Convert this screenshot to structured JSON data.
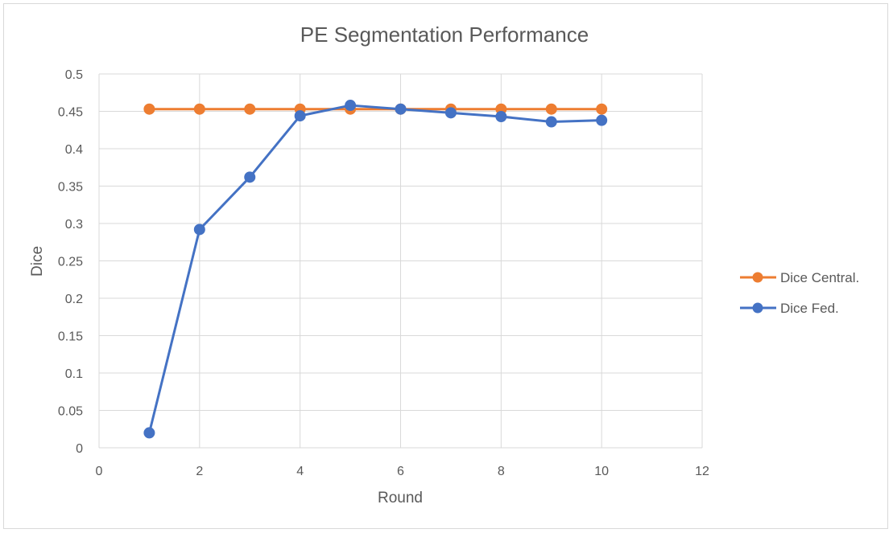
{
  "chart_data": {
    "type": "scatter",
    "title": "PE Segmentation Performance",
    "xlabel": "Round",
    "ylabel": "Dice",
    "xlim": [
      0,
      12
    ],
    "ylim": [
      0,
      0.5
    ],
    "x_ticks": [
      "0",
      "2",
      "4",
      "6",
      "8",
      "10",
      "12"
    ],
    "y_ticks": [
      "0",
      "0.05",
      "0.1",
      "0.15",
      "0.2",
      "0.25",
      "0.3",
      "0.35",
      "0.4",
      "0.45",
      "0.5"
    ],
    "grid": true,
    "legend_position": "right",
    "series": [
      {
        "name": "Dice Central.",
        "color": "#ed7d31",
        "x": [
          1,
          2,
          3,
          4,
          5,
          6,
          7,
          8,
          9,
          10
        ],
        "y": [
          0.453,
          0.453,
          0.453,
          0.453,
          0.453,
          0.453,
          0.453,
          0.453,
          0.453,
          0.453
        ]
      },
      {
        "name": "Dice Fed.",
        "color": "#4472c4",
        "x": [
          1,
          2,
          3,
          4,
          5,
          6,
          7,
          8,
          9,
          10
        ],
        "y": [
          0.02,
          0.292,
          0.362,
          0.444,
          0.458,
          0.453,
          0.448,
          0.443,
          0.436,
          0.438
        ]
      }
    ]
  }
}
